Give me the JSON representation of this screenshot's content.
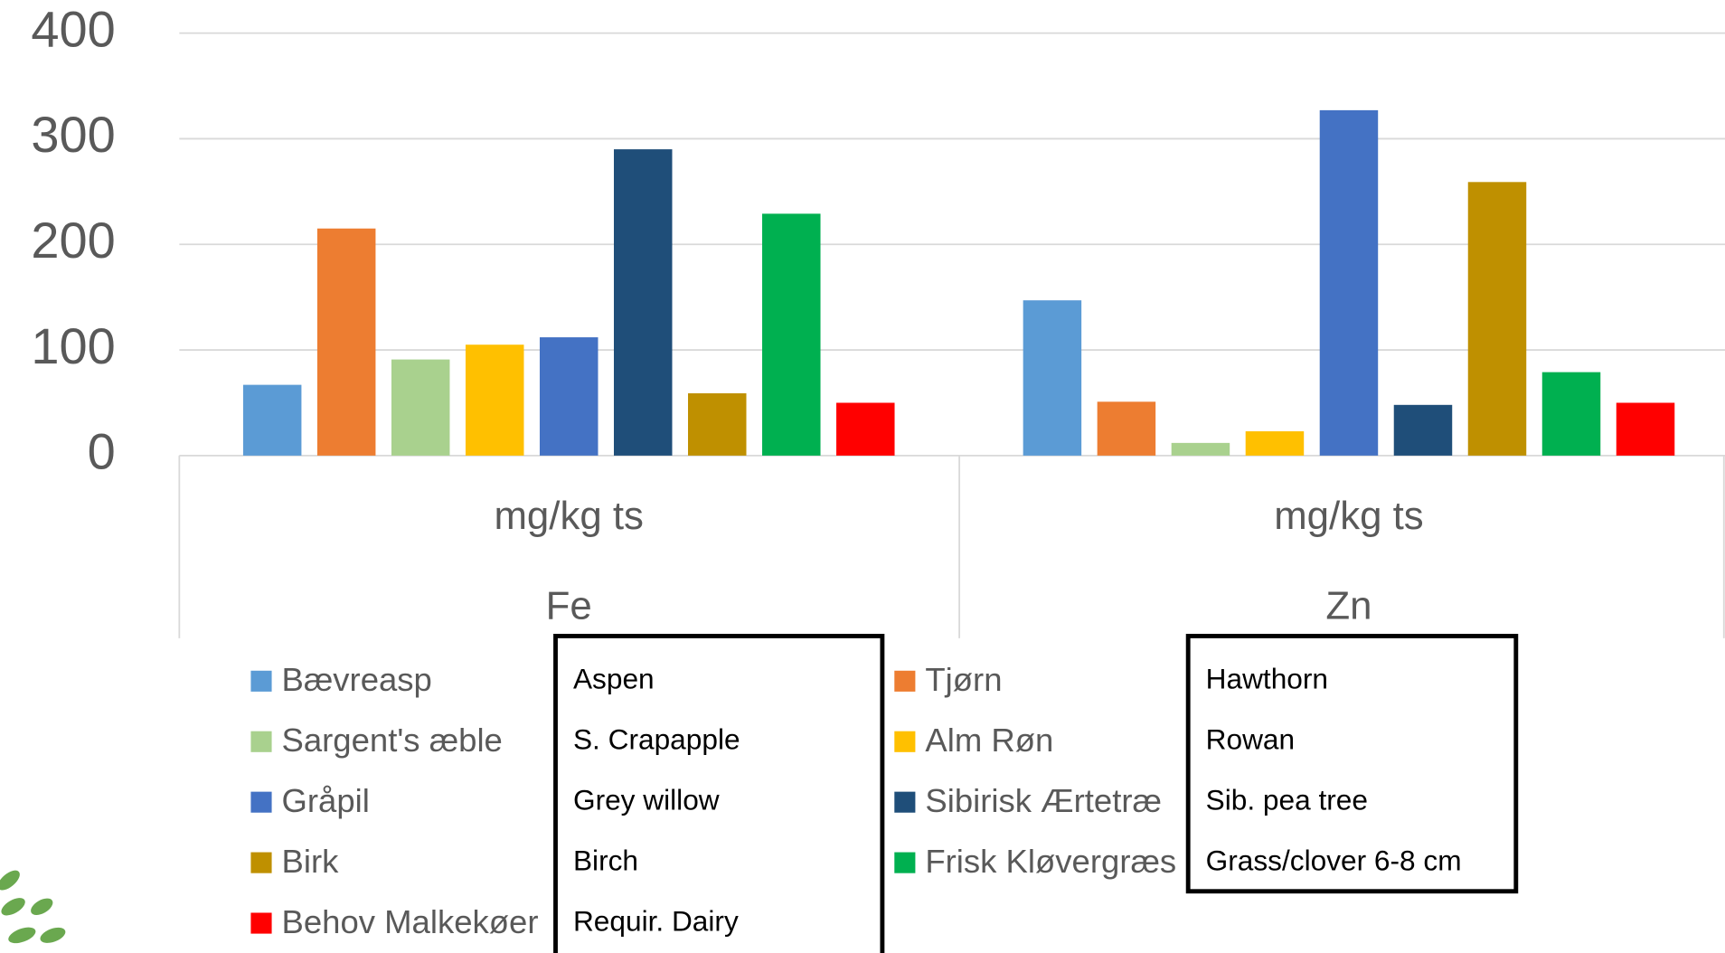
{
  "chart_data": {
    "type": "bar",
    "categories": [
      "Fe",
      "Zn"
    ],
    "category_group_label": "mg/kg ts",
    "series": [
      {
        "name": "Bævreasp",
        "color": "#5b9bd5",
        "values": [
          67,
          147
        ]
      },
      {
        "name": "Tjørn",
        "color": "#ed7d31",
        "values": [
          215,
          51
        ]
      },
      {
        "name": "Sargent's æble",
        "color": "#a9d18e",
        "values": [
          91,
          12
        ]
      },
      {
        "name": "Alm Røn",
        "color": "#ffc000",
        "values": [
          105,
          23
        ]
      },
      {
        "name": "Gråpil",
        "color": "#4472c4",
        "values": [
          112,
          327
        ]
      },
      {
        "name": "Sibirisk Ærtetræ",
        "color": "#1f4e79",
        "values": [
          290,
          48
        ]
      },
      {
        "name": "Birk",
        "color": "#bf9000",
        "values": [
          59,
          259
        ]
      },
      {
        "name": "Frisk Kløvergræs",
        "color": "#00b050",
        "values": [
          229,
          79
        ]
      },
      {
        "name": "Behov Malkekøer",
        "color": "#ff0000",
        "values": [
          50,
          50
        ]
      }
    ],
    "ylim": [
      0,
      400
    ],
    "yticks": [
      0,
      100,
      200,
      300,
      400
    ],
    "grid": true,
    "translation_boxes": [
      [
        "Aspen",
        "S. Crapapple",
        "Grey willow",
        "Birch",
        "Requir. Dairy"
      ],
      [
        "Hawthorn",
        "Rowan",
        "Sib. pea tree",
        "Grass/clover 6-8 cm"
      ]
    ]
  }
}
